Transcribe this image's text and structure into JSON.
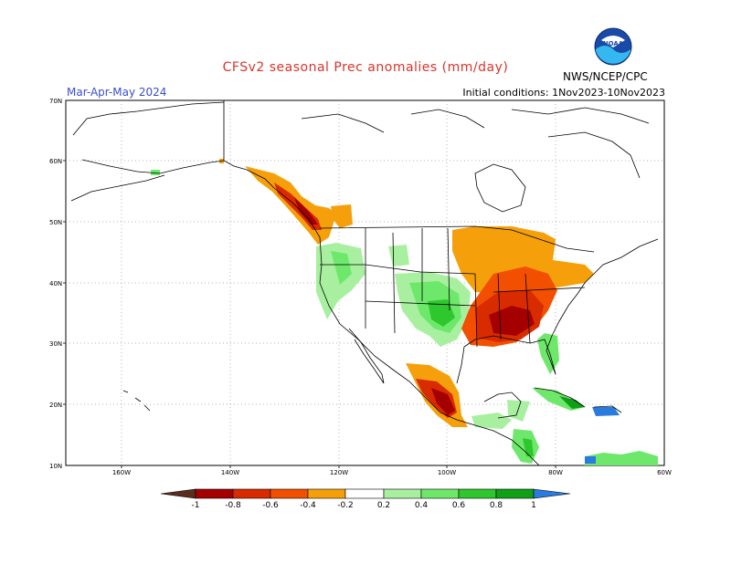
{
  "header": {
    "title": "CFSv2 seasonal Prec anomalies (mm/day)",
    "season": "Mar-Apr-May 2024",
    "initial_conditions": "Initial conditions: 1Nov2023-10Nov2023",
    "agency": "NWS/NCEP/CPC",
    "logo_text": "NOAA"
  },
  "map": {
    "lat_ticks": [
      "70N",
      "60N",
      "50N",
      "40N",
      "30N",
      "20N",
      "10N"
    ],
    "lon_ticks": [
      "160W",
      "140W",
      "120W",
      "100W",
      "80W",
      "60W"
    ]
  },
  "legend": {
    "labels": [
      "-1",
      "-0.8",
      "-0.6",
      "-0.4",
      "-0.2",
      "0.2",
      "0.4",
      "0.6",
      "0.8",
      "1"
    ],
    "colors": {
      "below_-1": "#5a2e1e",
      "-1_-0.8": "#a50000",
      "-0.8_-0.6": "#d92b00",
      "-0.6_-0.4": "#f25000",
      "-0.4_-0.2": "#f5a00a",
      "-0.2_0.2": "#ffffff",
      "0.2_0.4": "#a8f0a0",
      "0.4_0.6": "#6ee86a",
      "0.6_0.8": "#2ec82e",
      "0.8_1": "#0fa016",
      "above_1": "#2a7be0"
    }
  },
  "colors": {
    "title": "#d8342c",
    "season": "#3a4fc8"
  }
}
